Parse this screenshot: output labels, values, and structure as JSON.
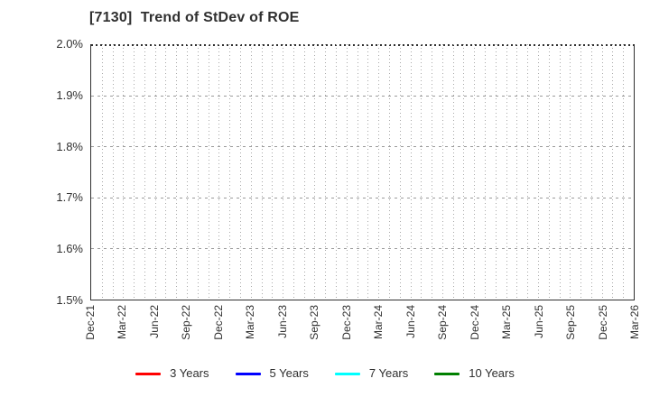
{
  "chart_data": {
    "type": "line",
    "title": "[7130]  Trend of StDev of ROE",
    "x_tick_labels": [
      "Dec-21",
      "Mar-22",
      "Jun-22",
      "Sep-22",
      "Dec-22",
      "Mar-23",
      "Jun-23",
      "Sep-23",
      "Dec-23",
      "Mar-24",
      "Jun-24",
      "Sep-24",
      "Dec-24",
      "Mar-25",
      "Jun-25",
      "Sep-25",
      "Dec-25",
      "Mar-26"
    ],
    "y_tick_labels": [
      "2.0%",
      "1.9%",
      "1.8%",
      "1.7%",
      "1.6%",
      "1.5%"
    ],
    "ylim": [
      1.5,
      2.0
    ],
    "y_unit": "percent",
    "grid": true,
    "minor_vertical_gridlines": "monthly",
    "legend_position": "bottom-center",
    "plot_is_empty": true,
    "series": [
      {
        "name": "3 Years",
        "color": "#ff0000",
        "values": []
      },
      {
        "name": "5 Years",
        "color": "#0000ff",
        "values": []
      },
      {
        "name": "7 Years",
        "color": "#00ffff",
        "values": []
      },
      {
        "name": "10 Years",
        "color": "#008000",
        "values": []
      }
    ]
  }
}
